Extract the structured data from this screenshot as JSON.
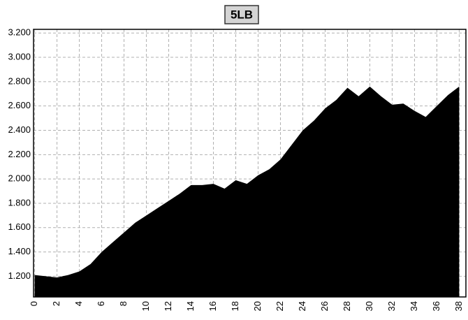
{
  "chart_data": {
    "type": "area",
    "title": "5LB",
    "x": [
      0,
      1,
      2,
      3,
      4,
      5,
      6,
      7,
      8,
      9,
      10,
      11,
      12,
      13,
      14,
      15,
      16,
      17,
      18,
      19,
      20,
      21,
      22,
      23,
      24,
      25,
      26,
      27,
      28,
      29,
      30,
      31,
      32,
      33,
      34,
      35,
      36,
      37,
      38
    ],
    "series": [
      {
        "color": "#000000",
        "values": [
          1210,
          1200,
          1190,
          1210,
          1240,
          1300,
          1400,
          1480,
          1560,
          1640,
          1700,
          1760,
          1820,
          1880,
          1950,
          1950,
          1960,
          1920,
          1990,
          1960,
          2030,
          2080,
          2160,
          2280,
          2400,
          2480,
          2580,
          2650,
          2750,
          2680,
          2760,
          2680,
          2610,
          2620,
          2560,
          2510,
          2600,
          2690,
          2760
        ]
      }
    ],
    "xlim": [
      -0.1,
      38.6
    ],
    "xticks": [
      0,
      2,
      4,
      6,
      8,
      10,
      12,
      14,
      16,
      18,
      20,
      22,
      24,
      26,
      28,
      30,
      32,
      34,
      36,
      38
    ],
    "ylim": [
      1030,
      3230
    ],
    "yticks": [
      {
        "value": 1200,
        "label": "1.200"
      },
      {
        "value": 1400,
        "label": "1.400"
      },
      {
        "value": 1600,
        "label": "1.600"
      },
      {
        "value": 1800,
        "label": "1.800"
      },
      {
        "value": 2000,
        "label": "2.000"
      },
      {
        "value": 2200,
        "label": "2.200"
      },
      {
        "value": 2400,
        "label": "2.400"
      },
      {
        "value": 2600,
        "label": "2.600"
      },
      {
        "value": 2800,
        "label": "2.800"
      },
      {
        "value": 3000,
        "label": "3.000"
      },
      {
        "value": 3200,
        "label": "3.200"
      }
    ],
    "grid": true
  }
}
